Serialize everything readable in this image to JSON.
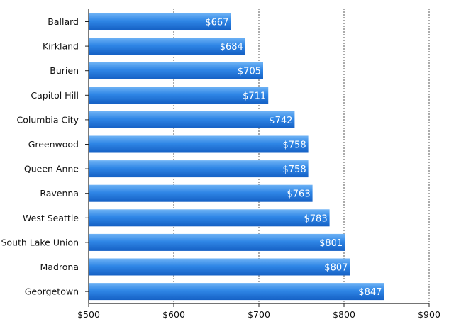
{
  "chart_data": {
    "type": "bar",
    "orientation": "horizontal",
    "categories": [
      "Ballard",
      "Kirkland",
      "Burien",
      "Capitol Hill",
      "Columbia City",
      "Greenwood",
      "Queen Anne",
      "Ravenna",
      "West Seattle",
      "South Lake Union",
      "Madrona",
      "Georgetown"
    ],
    "values": [
      667,
      684,
      705,
      711,
      742,
      758,
      758,
      763,
      783,
      801,
      807,
      847
    ],
    "value_labels": [
      "$667",
      "$684",
      "$705",
      "$711",
      "$742",
      "$758",
      "$758",
      "$763",
      "$783",
      "$801",
      "$807",
      "$847"
    ],
    "x_ticks": [
      500,
      600,
      700,
      800,
      900
    ],
    "x_tick_labels": [
      "$500",
      "$600",
      "$700",
      "$800",
      "$900"
    ],
    "xlim": [
      500,
      900
    ],
    "title": "",
    "xlabel": "",
    "ylabel": "",
    "grid": "vertical dashed",
    "legend": "none",
    "colors": {
      "bar_top": "#6fb3f5",
      "bar_mid": "#2f86e6",
      "bar_bottom": "#1560c4",
      "axis": "#222222",
      "grid": "#555555"
    }
  }
}
